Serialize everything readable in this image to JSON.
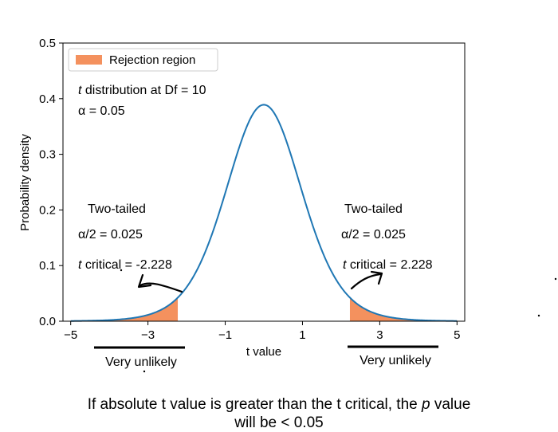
{
  "chart_data": {
    "type": "line",
    "xlabel": "t value",
    "ylabel": "Probability density",
    "xlim": [
      -5.2,
      5.2
    ],
    "ylim": [
      0,
      0.5
    ],
    "xticks": [
      -5,
      -3,
      -1,
      1,
      3,
      5
    ],
    "xtick_labels": [
      "−5",
      "−3",
      "−1",
      "1",
      "3",
      "5"
    ],
    "yticks": [
      0.0,
      0.1,
      0.2,
      0.3,
      0.4,
      0.5
    ],
    "ytick_labels": [
      "0.0",
      "0.1",
      "0.2",
      "0.3",
      "0.4",
      "0.5"
    ],
    "grid": false,
    "legend_position": "top-left",
    "series": [
      {
        "distribution": "student-t",
        "df": 10,
        "x_range": [
          -5,
          5
        ],
        "color": "#1f77b4"
      }
    ],
    "shaded_regions": [
      {
        "from": -5,
        "to": -2.228,
        "color": "#f4915e"
      },
      {
        "from": 2.228,
        "to": 5,
        "color": "#f4915e"
      }
    ],
    "legend": [
      {
        "label": "Rejection region",
        "color": "#f4915e"
      }
    ],
    "annotations": {
      "dist_prefix": "t",
      "dist_rest": " distribution at Df = 10",
      "alpha": "α = 0.05",
      "left": {
        "title": "Two-tailed",
        "alpha_half": "α/2 = 0.025",
        "crit_prefix": "t",
        "crit_rest": " critical = -2.228",
        "under": "Very unlikely"
      },
      "right": {
        "title": "Two-tailed",
        "alpha_half": "α/2 = 0.025",
        "crit_prefix": "t",
        "crit_rest": " critical = 2.228",
        "under": "Very unlikely"
      }
    }
  },
  "caption": {
    "line1_a": "If absolute t value is greater than the t critical, the ",
    "line1_p": "p",
    "line1_b": " value",
    "line2": "will be < 0.05"
  }
}
